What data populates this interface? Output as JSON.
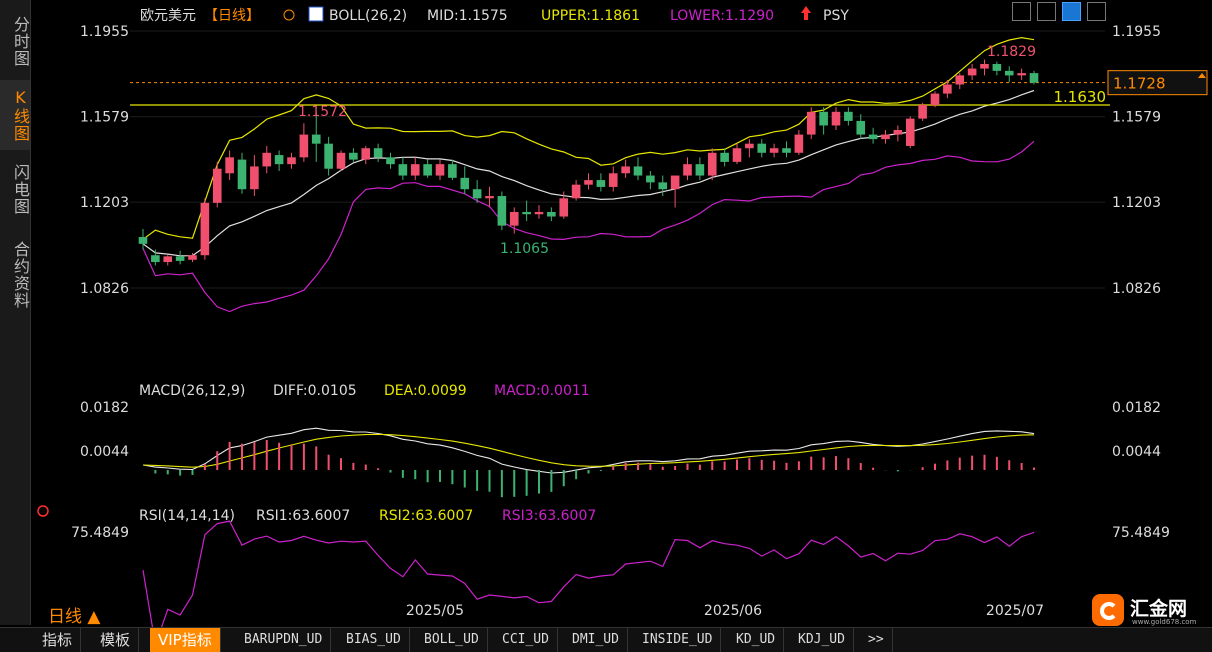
{
  "sidebar": {
    "tabs": [
      "分时图",
      "K线图",
      "闪电图",
      "合约资料"
    ],
    "active_index": 1
  },
  "header": {
    "symbol": "欧元美元",
    "period_tag": "【日线】",
    "boll": "BOLL(26,2)",
    "mid": "MID:1.1575",
    "upper": "UPPER:1.1861",
    "lower": "LOWER:1.1290",
    "psy": "PSY"
  },
  "price_labels": [
    "1.1955",
    "1.1579",
    "1.1203",
    "1.0826"
  ],
  "price_values": [
    1.1955,
    1.1579,
    1.1203,
    1.0826
  ],
  "current_price": "1.1728",
  "hline_label": "1.1630",
  "high_label": "1.1829",
  "low_label": "1.1065",
  "earlier_high_label": "1.1572",
  "macd": {
    "title": "MACD(26,12,9)",
    "diff": "DIFF:0.0105",
    "dea": "DEA:0.0099",
    "macd": "MACD:0.0011",
    "levels": [
      "0.0182",
      "0.0044"
    ],
    "level_values": [
      0.0182,
      0.0044
    ]
  },
  "rsi": {
    "title": "RSI(14,14,14)",
    "rsi1": "RSI1:63.6007",
    "rsi2": "RSI2:63.6007",
    "rsi3": "RSI3:63.6007",
    "level": "75.4849",
    "level_value": 75.4849
  },
  "dates": [
    "2025/05",
    "2025/06",
    "2025/07"
  ],
  "period_label": "日线 ▲",
  "bottom_tabs": [
    "指标",
    "模板",
    "VIP指标",
    "BARUPDN_UD",
    "BIAS_UD",
    "BOLL_UD",
    "CCI_UD",
    "DMI_UD",
    "INSIDE_UD",
    "KD_UD",
    "KDJ_UD",
    ">>"
  ],
  "logo": {
    "name": "汇金网",
    "url": "www.gold678.com"
  },
  "colors": {
    "up": "#f0506e",
    "down": "#3cb371",
    "mid": "#e0e0e0",
    "upper": "#e6e600",
    "lower": "#cc22cc",
    "accent": "#ff8a00"
  },
  "chart_data": {
    "type": "candlestick",
    "ylim": [
      1.0826,
      1.1955
    ],
    "candles": [
      [
        1.105,
        1.1085,
        1.0995,
        1.102
      ],
      [
        1.097,
        1.0995,
        1.0925,
        1.094
      ],
      [
        1.094,
        1.097,
        1.0925,
        1.0965
      ],
      [
        1.0965,
        1.099,
        1.093,
        1.0945
      ],
      [
        1.095,
        1.098,
        1.094,
        1.097
      ],
      [
        1.097,
        1.122,
        1.095,
        1.12
      ],
      [
        1.12,
        1.138,
        1.118,
        1.135
      ],
      [
        1.133,
        1.143,
        1.13,
        1.14
      ],
      [
        1.139,
        1.142,
        1.124,
        1.126
      ],
      [
        1.126,
        1.141,
        1.123,
        1.136
      ],
      [
        1.136,
        1.145,
        1.133,
        1.142
      ],
      [
        1.141,
        1.143,
        1.134,
        1.137
      ],
      [
        1.137,
        1.142,
        1.135,
        1.14
      ],
      [
        1.14,
        1.155,
        1.138,
        1.15
      ],
      [
        1.15,
        1.16,
        1.138,
        1.146
      ],
      [
        1.146,
        1.149,
        1.132,
        1.135
      ],
      [
        1.135,
        1.143,
        1.134,
        1.142
      ],
      [
        1.142,
        1.144,
        1.138,
        1.139
      ],
      [
        1.139,
        1.145,
        1.137,
        1.144
      ],
      [
        1.144,
        1.146,
        1.138,
        1.14
      ],
      [
        1.14,
        1.142,
        1.135,
        1.137
      ],
      [
        1.137,
        1.14,
        1.13,
        1.132
      ],
      [
        1.132,
        1.14,
        1.13,
        1.137
      ],
      [
        1.137,
        1.139,
        1.131,
        1.132
      ],
      [
        1.132,
        1.139,
        1.13,
        1.137
      ],
      [
        1.137,
        1.139,
        1.13,
        1.131
      ],
      [
        1.131,
        1.136,
        1.124,
        1.126
      ],
      [
        1.126,
        1.13,
        1.12,
        1.122
      ],
      [
        1.122,
        1.127,
        1.118,
        1.123
      ],
      [
        1.123,
        1.125,
        1.108,
        1.11
      ],
      [
        1.11,
        1.118,
        1.1065,
        1.116
      ],
      [
        1.116,
        1.121,
        1.112,
        1.115
      ],
      [
        1.115,
        1.119,
        1.113,
        1.116
      ],
      [
        1.116,
        1.118,
        1.112,
        1.114
      ],
      [
        1.114,
        1.125,
        1.113,
        1.122
      ],
      [
        1.122,
        1.13,
        1.121,
        1.128
      ],
      [
        1.128,
        1.133,
        1.126,
        1.13
      ],
      [
        1.13,
        1.133,
        1.125,
        1.127
      ],
      [
        1.127,
        1.136,
        1.125,
        1.133
      ],
      [
        1.133,
        1.139,
        1.131,
        1.136
      ],
      [
        1.136,
        1.14,
        1.13,
        1.132
      ],
      [
        1.132,
        1.134,
        1.126,
        1.129
      ],
      [
        1.129,
        1.132,
        1.123,
        1.126
      ],
      [
        1.126,
        1.132,
        1.118,
        1.132
      ],
      [
        1.132,
        1.14,
        1.13,
        1.137
      ],
      [
        1.137,
        1.14,
        1.13,
        1.132
      ],
      [
        1.132,
        1.144,
        1.13,
        1.142
      ],
      [
        1.142,
        1.144,
        1.136,
        1.138
      ],
      [
        1.138,
        1.146,
        1.137,
        1.144
      ],
      [
        1.144,
        1.148,
        1.14,
        1.146
      ],
      [
        1.146,
        1.148,
        1.14,
        1.142
      ],
      [
        1.142,
        1.146,
        1.14,
        1.144
      ],
      [
        1.144,
        1.147,
        1.14,
        1.142
      ],
      [
        1.142,
        1.152,
        1.141,
        1.15
      ],
      [
        1.15,
        1.162,
        1.148,
        1.16
      ],
      [
        1.16,
        1.162,
        1.15,
        1.154
      ],
      [
        1.154,
        1.162,
        1.152,
        1.16
      ],
      [
        1.16,
        1.162,
        1.154,
        1.156
      ],
      [
        1.156,
        1.159,
        1.148,
        1.15
      ],
      [
        1.15,
        1.153,
        1.146,
        1.148
      ],
      [
        1.148,
        1.152,
        1.146,
        1.15
      ],
      [
        1.15,
        1.154,
        1.147,
        1.152
      ],
      [
        1.145,
        1.158,
        1.144,
        1.157
      ],
      [
        1.157,
        1.164,
        1.156,
        1.163
      ],
      [
        1.163,
        1.169,
        1.162,
        1.168
      ],
      [
        1.168,
        1.174,
        1.166,
        1.172
      ],
      [
        1.172,
        1.177,
        1.17,
        1.176
      ],
      [
        1.176,
        1.181,
        1.174,
        1.179
      ],
      [
        1.179,
        1.1829,
        1.176,
        1.181
      ],
      [
        1.181,
        1.182,
        1.176,
        1.178
      ],
      [
        1.178,
        1.18,
        1.173,
        1.176
      ],
      [
        1.176,
        1.179,
        1.174,
        1.177
      ],
      [
        1.177,
        1.178,
        1.172,
        1.1728
      ]
    ]
  }
}
